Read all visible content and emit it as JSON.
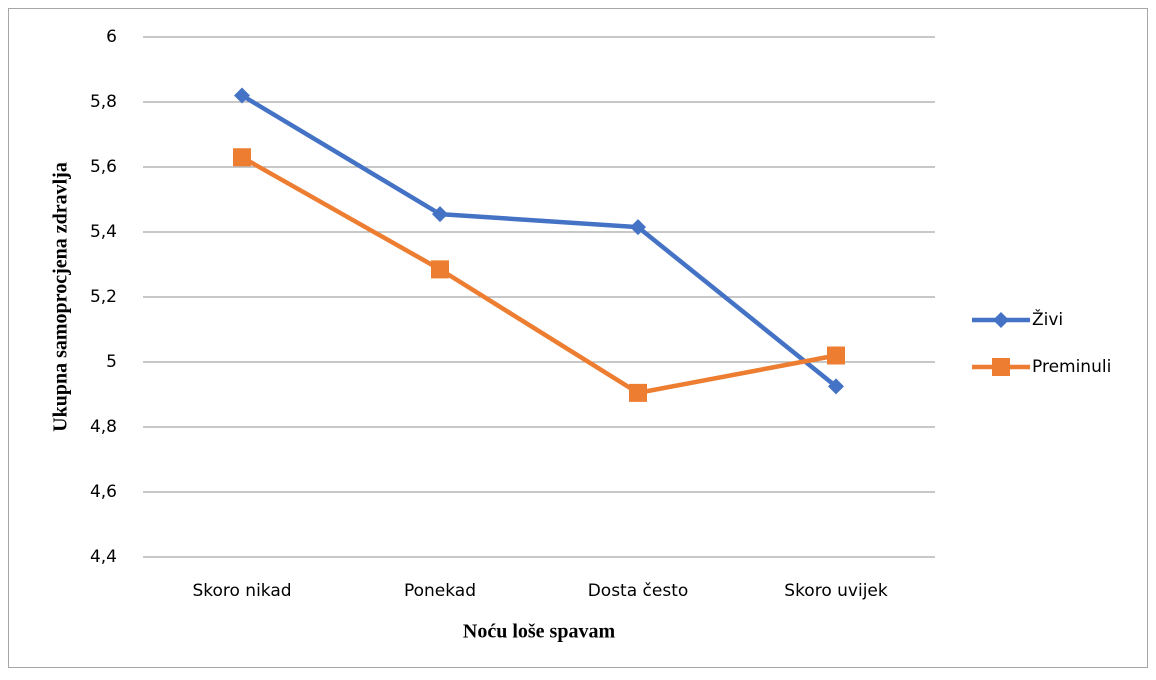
{
  "chart_data": {
    "type": "line",
    "x_label": "Noću loše spavam",
    "y_label": "Ukupna samoprocjena zdravlja",
    "categories": [
      "Skoro nikad",
      "Ponekad",
      "Dosta često",
      "Skoro uvijek"
    ],
    "series": [
      {
        "name": "Živi",
        "color": "#4472c4",
        "marker": "diamond",
        "values": [
          5.82,
          5.455,
          5.415,
          4.925
        ]
      },
      {
        "name": "Preminuli",
        "color": "#ed7d31",
        "marker": "square",
        "values": [
          5.63,
          5.285,
          4.905,
          5.02
        ]
      }
    ],
    "ylim": [
      4.4,
      6
    ],
    "yticks": [
      {
        "value": 4.4,
        "label": "4,4"
      },
      {
        "value": 4.6,
        "label": "4,6"
      },
      {
        "value": 4.8,
        "label": "4,8"
      },
      5,
      {
        "value": 5.2,
        "label": "5,2"
      },
      {
        "value": 5.4,
        "label": "5,4"
      },
      {
        "value": 5.6,
        "label": "5,6"
      },
      {
        "value": 5.8,
        "label": "5,8"
      },
      6
    ],
    "grid": true,
    "legend": "right"
  }
}
